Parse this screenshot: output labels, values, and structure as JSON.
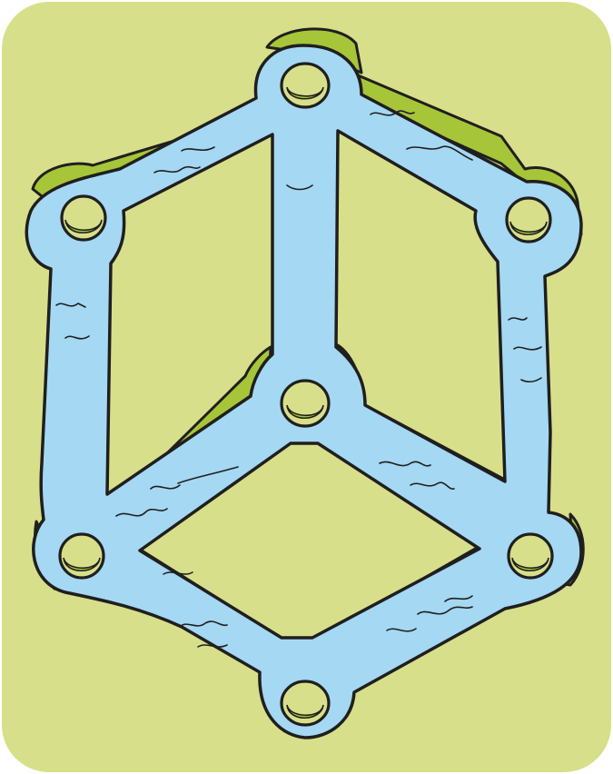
{
  "illustration": {
    "subject": "impossible-cube-frame-icon",
    "colors": {
      "card_background": "#d8df8a",
      "frame_fill": "#a5d8f2",
      "frame_side": "#a7c539",
      "outline": "#1f1f1f",
      "hole_fill": "#d8df8a"
    }
  }
}
